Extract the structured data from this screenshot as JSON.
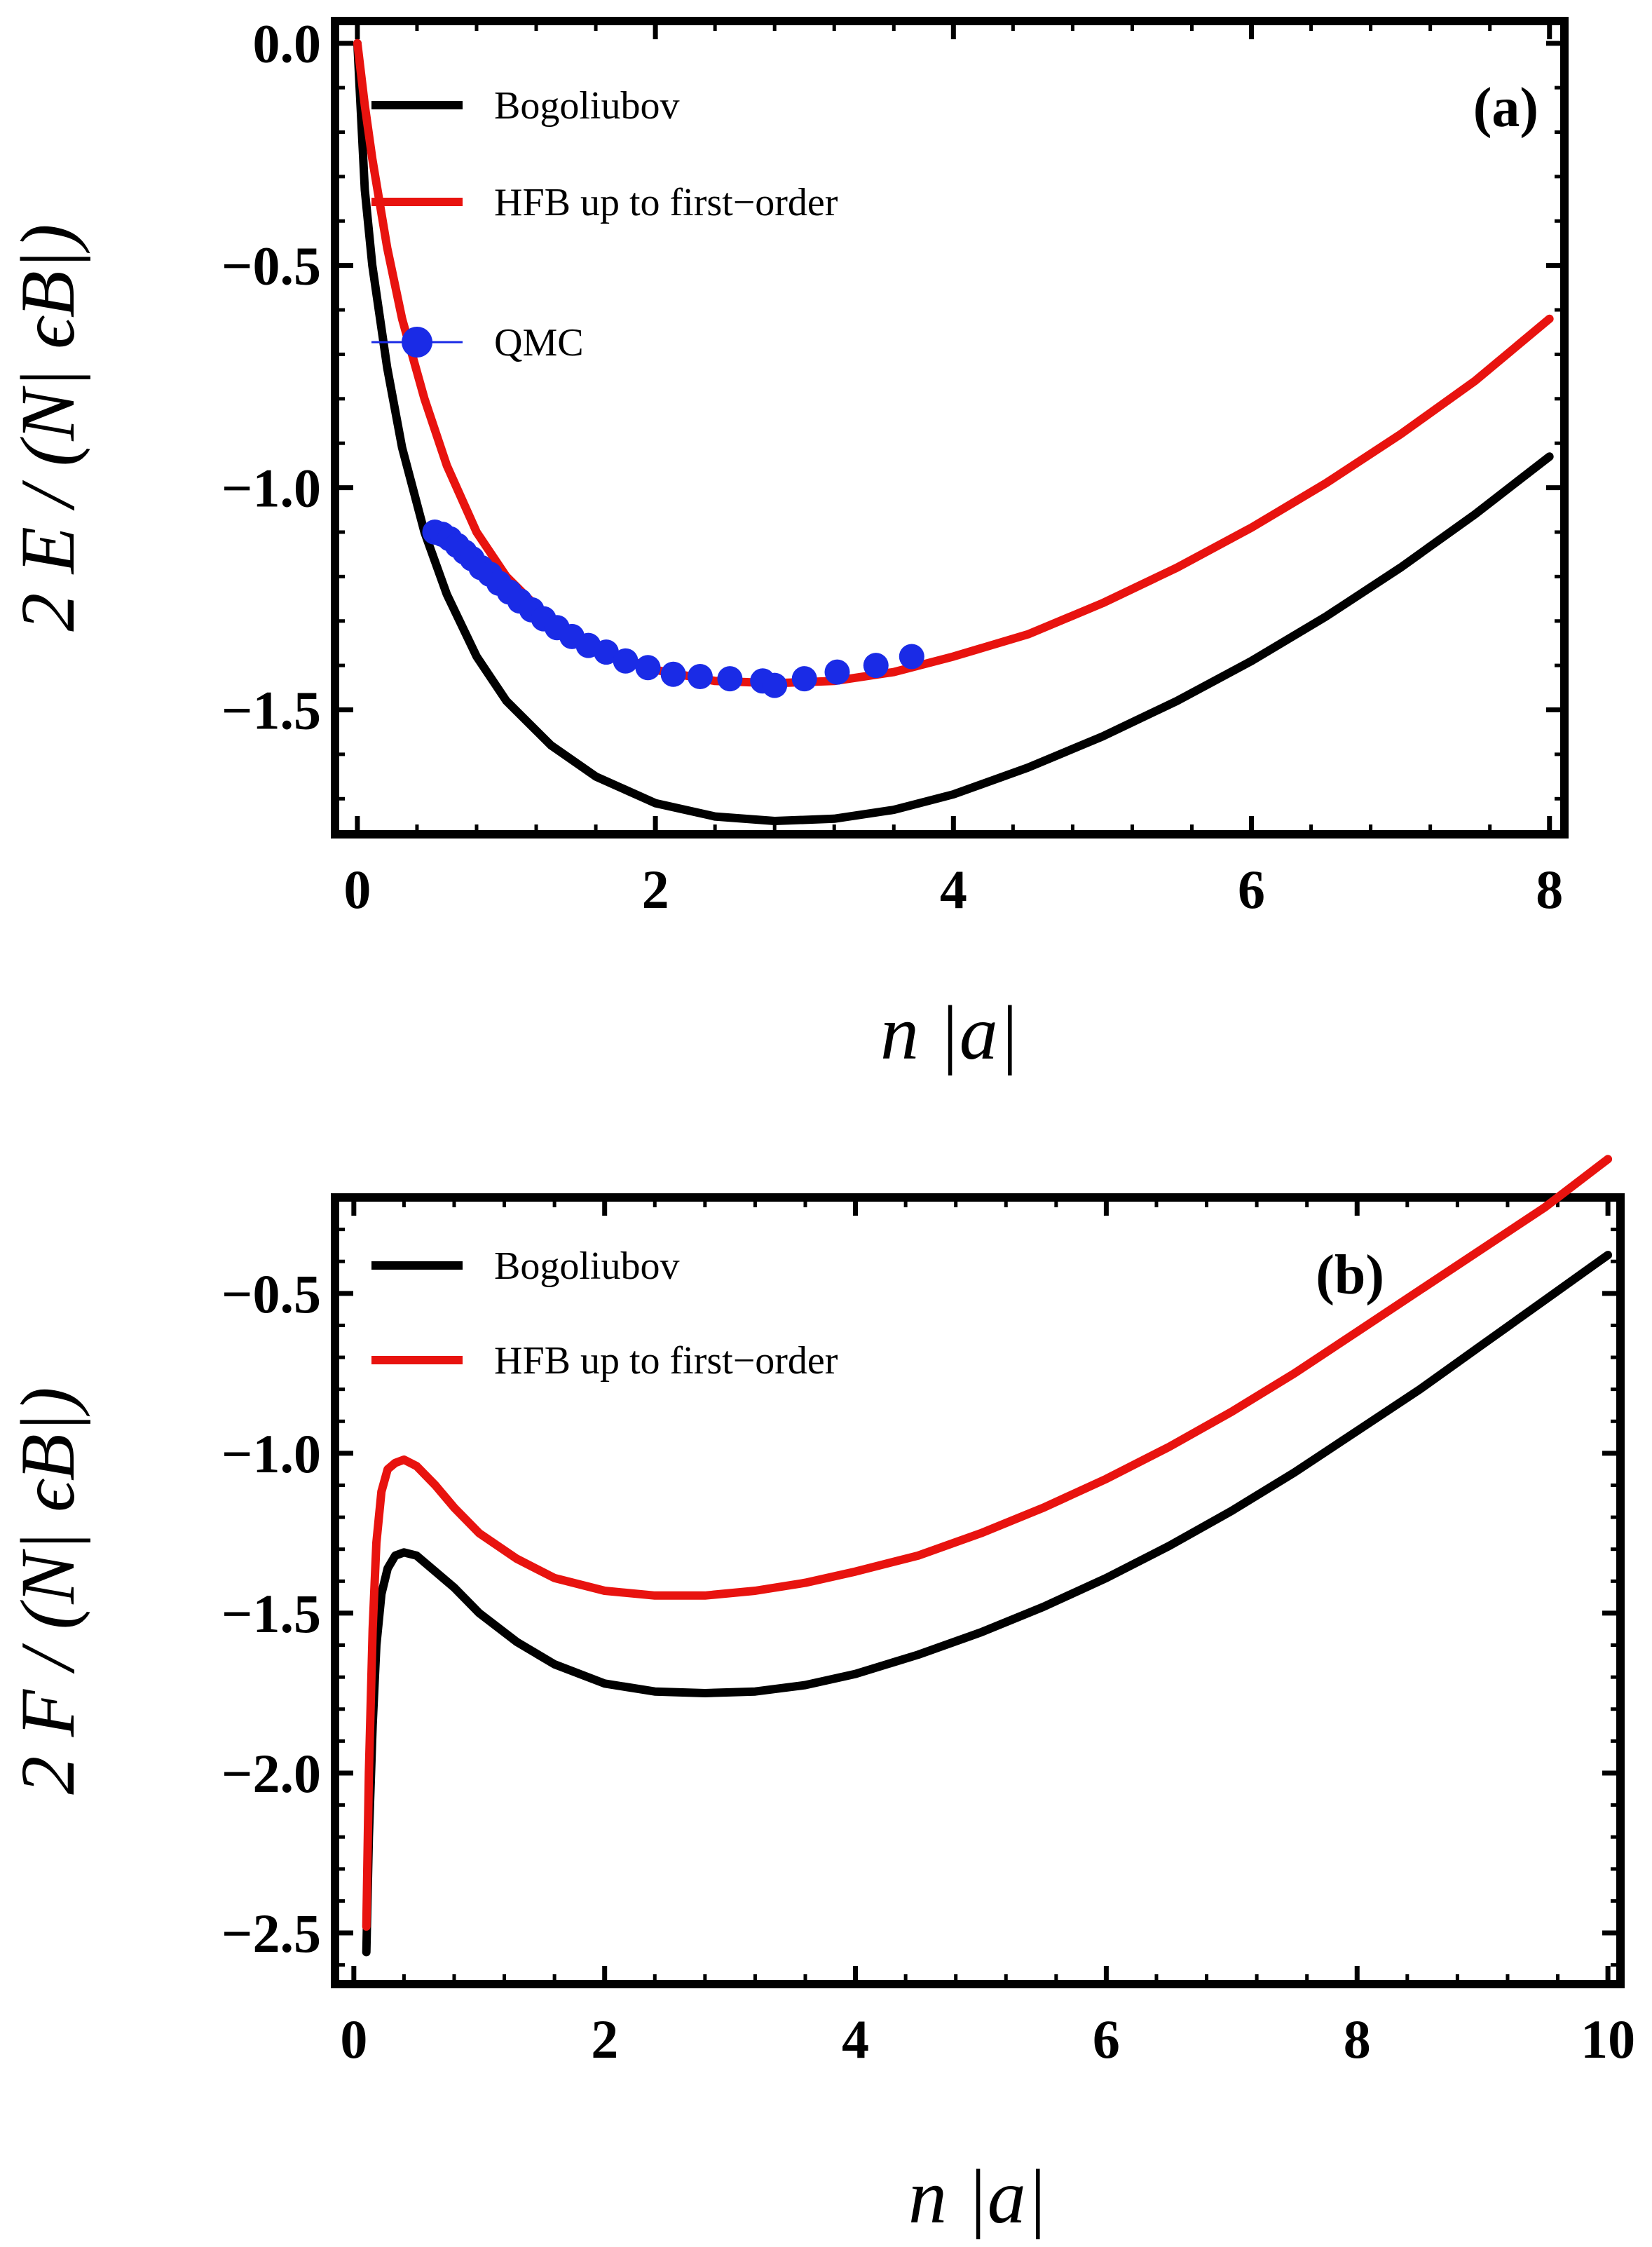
{
  "chart_data": [
    {
      "type": "line",
      "panel_label": "(a)",
      "xlabel": "n |a|",
      "ylabel": "2 E / (N| ϵB|)",
      "xlim": [
        -0.15,
        8.1
      ],
      "ylim": [
        -1.78,
        0.05
      ],
      "xticks": [
        {
          "value": 0,
          "label": "0"
        },
        {
          "value": 2,
          "label": "2"
        },
        {
          "value": 4,
          "label": "4"
        },
        {
          "value": 6,
          "label": "6"
        },
        {
          "value": 8,
          "label": "8"
        }
      ],
      "yticks": [
        {
          "value": 0.0,
          "label": "0.0"
        },
        {
          "value": -0.5,
          "label": "−0.5"
        },
        {
          "value": -1.0,
          "label": "−1.0"
        },
        {
          "value": -1.5,
          "label": "−1.5"
        }
      ],
      "legend": [
        {
          "label": "Bogoliubov",
          "color": "#000000",
          "style": "line"
        },
        {
          "label": "HFB up to first−order",
          "color": "#e8130f",
          "style": "line"
        },
        {
          "label": "QMC",
          "color": "#1a2be6",
          "style": "marker"
        }
      ],
      "series": [
        {
          "name": "Bogoliubov",
          "color": "#000000",
          "x": [
            0.0,
            0.05,
            0.1,
            0.2,
            0.3,
            0.45,
            0.6,
            0.8,
            1.0,
            1.3,
            1.6,
            2.0,
            2.4,
            2.8,
            3.2,
            3.6,
            4.0,
            4.5,
            5.0,
            5.5,
            6.0,
            6.5,
            7.0,
            7.5,
            8.0
          ],
          "y": [
            0.0,
            -0.33,
            -0.5,
            -0.73,
            -0.91,
            -1.1,
            -1.24,
            -1.38,
            -1.48,
            -1.58,
            -1.65,
            -1.71,
            -1.74,
            -1.75,
            -1.745,
            -1.725,
            -1.69,
            -1.63,
            -1.56,
            -1.48,
            -1.39,
            -1.29,
            -1.18,
            -1.06,
            -0.93
          ]
        },
        {
          "name": "HFB up to first−order",
          "color": "#e8130f",
          "x": [
            0.0,
            0.05,
            0.1,
            0.2,
            0.3,
            0.45,
            0.6,
            0.8,
            1.0,
            1.3,
            1.6,
            2.0,
            2.4,
            2.8,
            3.2,
            3.6,
            4.0,
            4.5,
            5.0,
            5.5,
            6.0,
            6.5,
            7.0,
            7.5,
            8.0
          ],
          "y": [
            0.0,
            -0.14,
            -0.26,
            -0.46,
            -0.62,
            -0.8,
            -0.95,
            -1.1,
            -1.2,
            -1.3,
            -1.36,
            -1.41,
            -1.435,
            -1.44,
            -1.435,
            -1.415,
            -1.38,
            -1.33,
            -1.26,
            -1.18,
            -1.09,
            -0.99,
            -0.88,
            -0.76,
            -0.62
          ]
        },
        {
          "name": "QMC",
          "color": "#1a2be6",
          "x": [
            0.52,
            0.57,
            0.62,
            0.67,
            0.72,
            0.77,
            0.83,
            0.89,
            0.95,
            1.02,
            1.09,
            1.17,
            1.25,
            1.34,
            1.44,
            1.55,
            1.67,
            1.8,
            1.95,
            2.12,
            2.3,
            2.5,
            2.72,
            2.8,
            3.0,
            3.22,
            3.48,
            3.72
          ],
          "y": [
            -1.1,
            -1.105,
            -1.115,
            -1.13,
            -1.145,
            -1.16,
            -1.18,
            -1.195,
            -1.215,
            -1.235,
            -1.255,
            -1.275,
            -1.295,
            -1.315,
            -1.335,
            -1.355,
            -1.37,
            -1.39,
            -1.405,
            -1.42,
            -1.425,
            -1.43,
            -1.435,
            -1.445,
            -1.43,
            -1.415,
            -1.4,
            -1.38
          ]
        }
      ]
    },
    {
      "type": "line",
      "panel_label": "(b)",
      "xlabel": "n |a|",
      "ylabel": "2 F / (N| ϵB|)",
      "xlim": [
        -0.15,
        10.1
      ],
      "ylim": [
        -2.66,
        -0.2
      ],
      "xticks": [
        {
          "value": 0,
          "label": "0"
        },
        {
          "value": 2,
          "label": "2"
        },
        {
          "value": 4,
          "label": "4"
        },
        {
          "value": 6,
          "label": "6"
        },
        {
          "value": 8,
          "label": "8"
        },
        {
          "value": 10,
          "label": "10"
        }
      ],
      "yticks": [
        {
          "value": -0.5,
          "label": "−0.5"
        },
        {
          "value": -1.0,
          "label": "−1.0"
        },
        {
          "value": -1.5,
          "label": "−1.5"
        },
        {
          "value": -2.0,
          "label": "−2.0"
        },
        {
          "value": -2.5,
          "label": "−2.5"
        }
      ],
      "legend": [
        {
          "label": "Bogoliubov",
          "color": "#000000",
          "style": "line"
        },
        {
          "label": "HFB up to first−order",
          "color": "#e8130f",
          "style": "line"
        }
      ],
      "series": [
        {
          "name": "Bogoliubov",
          "color": "#000000",
          "x": [
            0.1,
            0.12,
            0.15,
            0.18,
            0.22,
            0.27,
            0.33,
            0.4,
            0.5,
            0.65,
            0.8,
            1.0,
            1.3,
            1.6,
            2.0,
            2.4,
            2.8,
            3.2,
            3.6,
            4.0,
            4.5,
            5.0,
            5.5,
            6.0,
            6.5,
            7.0,
            7.5,
            8.0,
            8.5,
            9.0,
            9.5,
            10.0
          ],
          "y": [
            -2.56,
            -2.2,
            -1.85,
            -1.6,
            -1.44,
            -1.36,
            -1.32,
            -1.31,
            -1.32,
            -1.37,
            -1.42,
            -1.5,
            -1.59,
            -1.66,
            -1.72,
            -1.745,
            -1.75,
            -1.745,
            -1.725,
            -1.69,
            -1.63,
            -1.56,
            -1.48,
            -1.39,
            -1.29,
            -1.18,
            -1.06,
            -0.93,
            -0.8,
            -0.66,
            -0.52,
            -0.38
          ]
        },
        {
          "name": "HFB up to first−order",
          "color": "#e8130f",
          "x": [
            0.1,
            0.12,
            0.15,
            0.18,
            0.22,
            0.27,
            0.33,
            0.4,
            0.5,
            0.65,
            0.8,
            1.0,
            1.3,
            1.6,
            2.0,
            2.4,
            2.8,
            3.2,
            3.6,
            4.0,
            4.5,
            5.0,
            5.5,
            6.0,
            6.5,
            7.0,
            7.5,
            8.0,
            8.5,
            9.0,
            9.5,
            10.0
          ],
          "y": [
            -2.48,
            -2.0,
            -1.55,
            -1.28,
            -1.12,
            -1.05,
            -1.03,
            -1.02,
            -1.04,
            -1.1,
            -1.17,
            -1.25,
            -1.33,
            -1.39,
            -1.43,
            -1.445,
            -1.445,
            -1.43,
            -1.405,
            -1.37,
            -1.32,
            -1.25,
            -1.17,
            -1.08,
            -0.98,
            -0.87,
            -0.75,
            -0.62,
            -0.49,
            -0.36,
            -0.23,
            -0.08
          ]
        }
      ]
    }
  ]
}
